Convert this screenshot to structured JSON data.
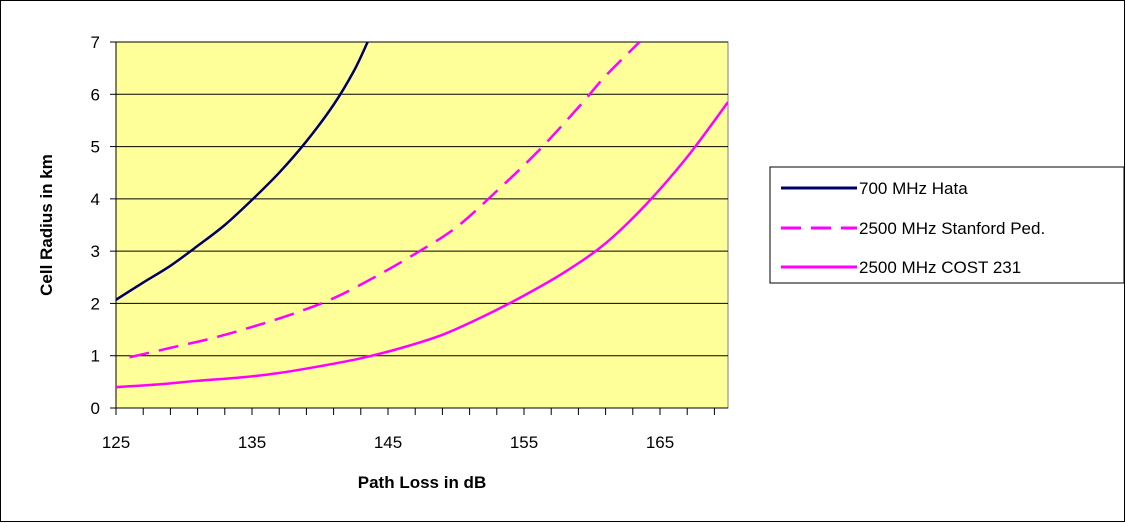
{
  "chart_data": {
    "type": "line",
    "title": "",
    "xlabel": "Path Loss in dB",
    "ylabel": "Cell Radius in km",
    "xlim": [
      125,
      170
    ],
    "ylim": [
      0,
      7
    ],
    "x_ticks": [
      125,
      135,
      145,
      155,
      165
    ],
    "y_ticks": [
      0,
      1,
      2,
      3,
      4,
      5,
      6,
      7
    ],
    "grid": true,
    "background": "#ffff99",
    "legend_position": "right",
    "series": [
      {
        "name": "700 MHz  Hata",
        "color": "#000066",
        "dash": "solid",
        "points": [
          [
            125,
            2.07
          ],
          [
            127,
            2.4
          ],
          [
            129,
            2.72
          ],
          [
            131,
            3.1
          ],
          [
            133,
            3.5
          ],
          [
            135,
            3.98
          ],
          [
            137,
            4.5
          ],
          [
            139,
            5.1
          ],
          [
            141,
            5.8
          ],
          [
            142.5,
            6.45
          ],
          [
            143.5,
            7.0
          ]
        ]
      },
      {
        "name": "2500 MHz  Stanford Ped.",
        "color": "#ff00ff",
        "dash": "dashed",
        "points": [
          [
            126,
            0.97
          ],
          [
            129,
            1.15
          ],
          [
            132,
            1.33
          ],
          [
            135,
            1.55
          ],
          [
            138,
            1.8
          ],
          [
            141,
            2.1
          ],
          [
            144,
            2.5
          ],
          [
            147,
            2.95
          ],
          [
            150,
            3.45
          ],
          [
            153,
            4.15
          ],
          [
            156,
            4.9
          ],
          [
            159,
            5.75
          ],
          [
            161,
            6.35
          ],
          [
            163.5,
            7.0
          ]
        ]
      },
      {
        "name": "2500 MHz  COST 231",
        "color": "#ff00ff",
        "dash": "solid",
        "points": [
          [
            125,
            0.4
          ],
          [
            128,
            0.45
          ],
          [
            131,
            0.52
          ],
          [
            134,
            0.58
          ],
          [
            137,
            0.67
          ],
          [
            140,
            0.8
          ],
          [
            143,
            0.95
          ],
          [
            146,
            1.15
          ],
          [
            149,
            1.4
          ],
          [
            152,
            1.75
          ],
          [
            155,
            2.15
          ],
          [
            158,
            2.6
          ],
          [
            161,
            3.15
          ],
          [
            164,
            3.9
          ],
          [
            167,
            4.8
          ],
          [
            170,
            5.85
          ]
        ]
      }
    ]
  }
}
